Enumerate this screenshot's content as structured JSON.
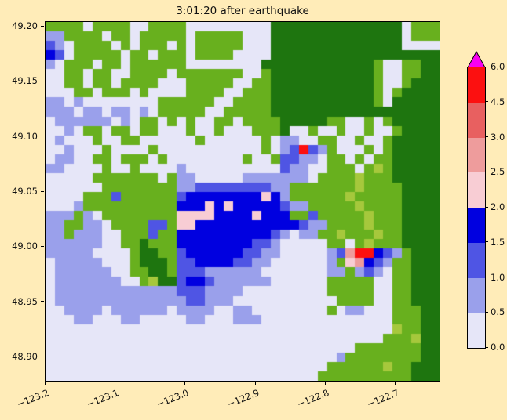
{
  "figure": {
    "title": "3:01:20 after earthquake",
    "background_color": "#ffecb8"
  },
  "axes": {
    "x_tick_labels": [
      "−123.2",
      "−123.1",
      "−123.0",
      "−122.9",
      "−122.8",
      "−122.7"
    ],
    "y_tick_labels": [
      "49.20",
      "49.15",
      "49.10",
      "49.05",
      "49.00",
      "48.95",
      "48.90"
    ]
  },
  "colorbar": {
    "tick_labels_bottom_to_top": [
      "0.0",
      "0.5",
      "1.0",
      "1.5",
      "2.0",
      "2.5",
      "3.0",
      "4.5",
      "6.0"
    ],
    "segment_colors_bottom_to_top": [
      "#e6e6f8",
      "#9aa0eb",
      "#4f55e4",
      "#0000e0",
      "#f8cdd4",
      "#ee9c9c",
      "#e86060",
      "#fc1010"
    ],
    "over_color": "#f800f0"
  },
  "chart_data": {
    "type": "heatmap",
    "title": "3:01:20 after earthquake",
    "x_tick_values": [
      -123.2,
      -123.1,
      -123.0,
      -122.9,
      -122.8,
      -122.7
    ],
    "y_tick_values": [
      49.2,
      49.15,
      49.1,
      49.05,
      49.0,
      48.95,
      48.9
    ],
    "x_range_approx": [
      -123.2,
      -122.64
    ],
    "y_range_approx": [
      48.88,
      49.2
    ],
    "color_levels": [
      0.0,
      0.5,
      1.0,
      1.5,
      2.0,
      2.5,
      3.0,
      4.5,
      6.0
    ],
    "over_value": 6.0,
    "grid": {
      "palette": {
        "g": "#68b01e",
        "G": "#1e750f",
        "y": "#a6c83c",
        "0": "#e6e6f8",
        "1": "#9aa0eb",
        "2": "#4f55e4",
        "3": "#0000e0",
        "4": "#f8cdd4",
        "5": "#ee9c9c",
        "6": "#e86060",
        "7": "#fc1010",
        "m": "#f800f0"
      },
      "legend": {
        "g": "land low (bright green)",
        "G": "land high / forest (dark green)",
        "y": "land mid (yellow-green)",
        "0": "water 0.0-0.5",
        "1": "water 0.5-1.0",
        "2": "water 1.0-1.5",
        "3": "water 1.5-2.0",
        "4": "water 2.0-2.5",
        "5": "water 2.5-3.0",
        "6": "water 3.0-4.5",
        "7": "water 4.5-6.0",
        "m": "water over 6.0"
      },
      "rows": [
        "gggg0gggg00gggg000000000GGGGGGGGGGGGGG0ggg",
        "11gggg0gg0ggggg0ggggg000GGGGGGGGGGGGGG0ggg",
        "210gggg0g0ggg0g0ggggg000GGGGGGGGGGGGGG0000",
        "320ggggg0gg0ggg0gggg0000GGGGGGGGGGGGGGGGGG",
        "10ggg0gg0gggggg00000000GGGGGGGGGGGGg00ggGG",
        "00gg0gg00gggg0ggggggg00gGGGGGGGGGGGg00ggGG",
        "00gg0gg0gggg000ggggg00ggGGGGGGGGGGGg00gGGG",
        "000gg0ggg0g0000gggg00gggGGGGGGGGGGGg0gGGGG",
        "110100000000gggggg00ggggGGGGGGGGGGGg0GGGGG",
        "111011011010ggggg00gggggGGGGGGGGGGGGGGGGGG",
        "0111111010gg0g0g00gg0ggggGGGGGgg00g0gGGGGG",
        "0010gg0gg0gg000g00g000gggG00g00g00g00gGGGG",
        "01000g00gg000000g000000g01100gg00g00gGGGGG",
        "001000g0000g00000000000g012721g000g0gGGGGG",
        "01100gg0ggg0g00000000g00g22110gg0g0ggGGGGG",
        "110000g00g00001000000000021100ggg0gygGGGGG",
        "00000ggggggg0g110000011111110ggggygggGGGGG",
        "000000gggggggg112222222211gggggggyggggGGGG",
        "0000ggg2gggggg233333333431ggggggygggggGGGG",
        "0001gggggggggg33343433333211gggggyggggGGGG",
        "111g10gggggggg444433334333gg2gggggygggGGGG",
        "11gg110gggg22g4433333333333211ggggygggGGGG",
        "11g11100ggg2gg333333333321011ggygggyggGGGG",
        "11111100ggGggg3333333322100000gg0gygggGGGG",
        "111110000gGGgg233333322110000012577321gGGG",
        "011111000gGGGg22333322110000001g45321ggGGG",
        "011111100ggGGg222111111000000011g1210ggGGG",
        "0111111100gyGG2332111111000000ggggg00ggGGG",
        "011111111111112221111000000000ggggg00ggGGG",
        "0111111111111112211100000000000gggg00ggGGG",
        "001111011111101111001100000000g011000gggGG",
        "0001100011000001100011100000000000000gggGG",
        "0000000000000000000000000000000000000yggGG",
        "000000000000000000000000000000000000gggyGG",
        "000000000000000000000000000000000gggggggGG",
        "00000000000000000000000000000001ggggggggGG",
        "000000000000000000000000000000ggggggyggGGG",
        "00000000000000000000000000000ggggggggggGGG"
      ]
    }
  }
}
